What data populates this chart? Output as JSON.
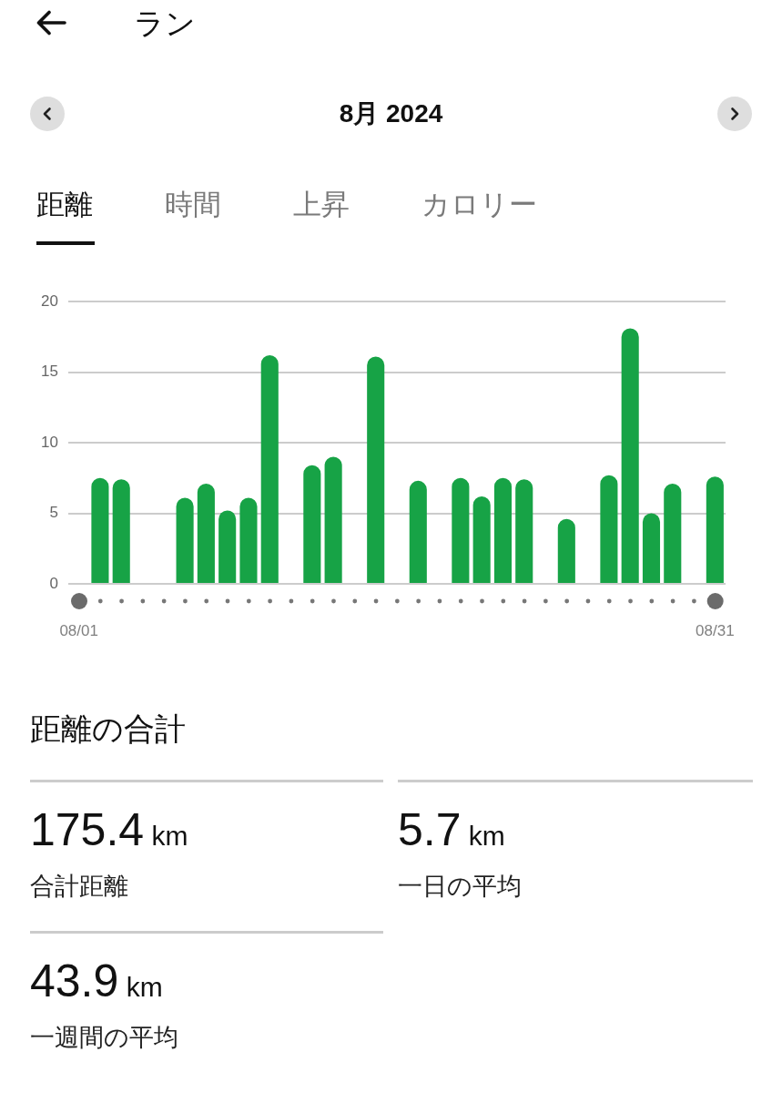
{
  "chart_data": [
    {
      "type": "bar",
      "title": "ラン",
      "subtitle": "8月 2024",
      "annotations": [
        "距離",
        "時間",
        "上昇",
        "カロリー"
      ],
      "categories": [
        "08/01",
        null,
        null,
        null,
        null,
        null,
        null,
        null,
        null,
        null,
        null,
        null,
        null,
        null,
        null,
        null,
        null,
        null,
        null,
        null,
        null,
        null,
        null,
        null,
        null,
        null,
        null,
        null,
        null,
        null,
        "08/31"
      ],
      "values": [
        null,
        7.5,
        7.4,
        null,
        null,
        6.1,
        7.1,
        5.2,
        6.1,
        16.2,
        null,
        8.4,
        9.0,
        null,
        16.1,
        null,
        7.3,
        null,
        7.5,
        6.2,
        7.5,
        7.4,
        null,
        4.6,
        null,
        7.7,
        18.1,
        5.0,
        7.1,
        null,
        7.6
      ],
      "color": "#17a346",
      "ylim": [
        0,
        20
      ],
      "yticks": [
        0,
        5,
        10,
        15,
        20
      ],
      "grid": "y"
    },
    {
      "type": "other",
      "title": "距離の合計",
      "annotations": [
        "175.4 km",
        "合計距離",
        "5.7 km",
        "一日の平均",
        "43.9 km",
        "一週間の平均"
      ]
    }
  ]
}
